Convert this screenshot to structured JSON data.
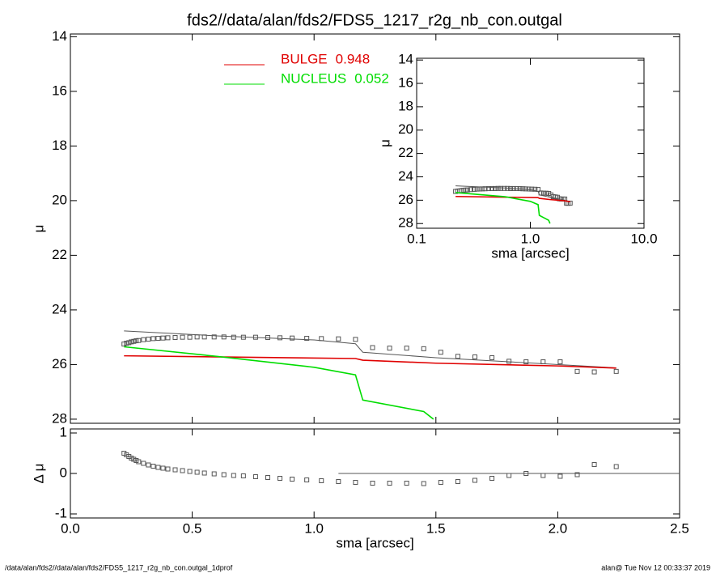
{
  "title": "fds2//data/alan/fds2/FDS5_1217_r2g_nb_con.outgal",
  "footer_left": "/data/alan/fds2//data/alan/fds2/FDS5_1217_r2g_nb_con.outgal_1dprof",
  "footer_right": "alan@  Tue Nov 12 00:33:37 2019",
  "chart_data": [
    {
      "type": "line",
      "ylabel": "μ",
      "xlim": [
        0,
        2.5
      ],
      "xticks": [
        0,
        0.5,
        1,
        1.5,
        2,
        2.5
      ],
      "ylim": [
        28.15,
        13.9
      ],
      "yticks": [
        14,
        16,
        18,
        20,
        22,
        24,
        26,
        28
      ],
      "series": [
        {
          "marker": "square",
          "color": "#555555",
          "x": [
            0.22,
            0.23,
            0.24,
            0.25,
            0.26,
            0.27,
            0.28,
            0.3,
            0.32,
            0.34,
            0.36,
            0.38,
            0.4,
            0.43,
            0.46,
            0.49,
            0.52,
            0.55,
            0.59,
            0.63,
            0.67,
            0.71,
            0.76,
            0.81,
            0.86,
            0.91,
            0.97,
            1.03,
            1.1,
            1.17,
            1.24,
            1.31,
            1.38,
            1.45,
            1.52,
            1.59,
            1.66,
            1.73,
            1.8,
            1.87,
            1.94,
            2.01,
            2.08,
            2.15,
            2.24
          ],
          "values": [
            25.25,
            25.22,
            25.2,
            25.17,
            25.15,
            25.13,
            25.12,
            25.09,
            25.07,
            25.05,
            25.04,
            25.03,
            25.02,
            25.01,
            25.0,
            25.0,
            24.99,
            24.99,
            24.99,
            24.99,
            25.0,
            25.0,
            25.0,
            25.01,
            25.02,
            25.03,
            25.04,
            25.05,
            25.06,
            25.08,
            25.38,
            25.4,
            25.4,
            25.42,
            25.55,
            25.7,
            25.72,
            25.75,
            25.88,
            25.9,
            25.9,
            25.9,
            26.25,
            26.27,
            26.25
          ]
        },
        {
          "color": "#555555",
          "x": [
            0.22,
            0.6,
            1.0,
            1.17,
            1.2,
            1.5,
            1.8,
            2.1,
            2.24
          ],
          "values": [
            24.77,
            24.95,
            25.1,
            25.24,
            25.55,
            25.75,
            25.9,
            26.05,
            26.12
          ]
        },
        {
          "name": "BULGE",
          "fraction": 0.948,
          "color": "#e00000",
          "x": [
            0.22,
            1.17,
            1.2,
            1.5,
            2.0,
            2.24
          ],
          "values": [
            25.68,
            25.78,
            25.84,
            25.95,
            26.05,
            26.13
          ]
        },
        {
          "name": "NUCLEUS",
          "fraction": 0.052,
          "color": "#00dd00",
          "x": [
            0.22,
            0.6,
            1.0,
            1.17,
            1.2,
            1.45,
            1.49
          ],
          "values": [
            25.35,
            25.7,
            26.1,
            26.38,
            27.3,
            27.72,
            28.0
          ]
        }
      ]
    },
    {
      "type": "line",
      "xlabel": "sma [arcsec]",
      "ylabel": "Δ μ",
      "xlim": [
        0,
        2.5
      ],
      "xticks": [
        {
          "value": 0,
          "label": "0.0"
        },
        0.5,
        {
          "value": 1,
          "label": "1.0"
        },
        1.5,
        {
          "value": 2,
          "label": "2.0"
        },
        2.5
      ],
      "ylim": [
        -1.1,
        1.1
      ],
      "yticks": [
        -1,
        0,
        1
      ],
      "series": [
        {
          "marker": "square",
          "color": "#555555",
          "x": [
            0.22,
            0.23,
            0.24,
            0.25,
            0.26,
            0.27,
            0.28,
            0.3,
            0.32,
            0.34,
            0.36,
            0.38,
            0.4,
            0.43,
            0.46,
            0.49,
            0.52,
            0.55,
            0.59,
            0.63,
            0.67,
            0.71,
            0.76,
            0.81,
            0.86,
            0.91,
            0.97,
            1.03,
            1.1,
            1.17,
            1.24,
            1.31,
            1.38,
            1.45,
            1.52,
            1.59,
            1.66,
            1.73,
            1.8,
            1.87,
            1.94,
            2.01,
            2.08,
            2.15,
            2.24
          ],
          "values": [
            0.5,
            0.46,
            0.42,
            0.38,
            0.35,
            0.32,
            0.29,
            0.25,
            0.21,
            0.18,
            0.15,
            0.13,
            0.11,
            0.09,
            0.07,
            0.05,
            0.03,
            0.01,
            -0.01,
            -0.03,
            -0.05,
            -0.06,
            -0.08,
            -0.1,
            -0.12,
            -0.14,
            -0.16,
            -0.18,
            -0.2,
            -0.22,
            -0.24,
            -0.24,
            -0.24,
            -0.25,
            -0.22,
            -0.2,
            -0.17,
            -0.12,
            -0.05,
            0,
            -0.05,
            -0.07,
            -0.03,
            0.22,
            0.17
          ]
        },
        {
          "color": "#555555",
          "x": [
            1.1,
            2.5
          ],
          "values": [
            0,
            0
          ]
        }
      ]
    },
    {
      "type": "line",
      "xlabel": "sma [arcsec]",
      "ylabel": "μ",
      "log_x": true,
      "xlim": [
        0.1,
        10
      ],
      "xticks": [
        0.1,
        {
          "value": 1,
          "label": "1.0"
        },
        {
          "value": 10,
          "label": "10.0"
        }
      ],
      "ylim": [
        28.4,
        13.85
      ],
      "yticks": [
        14,
        16,
        18,
        20,
        22,
        24,
        26,
        28
      ]
    }
  ]
}
